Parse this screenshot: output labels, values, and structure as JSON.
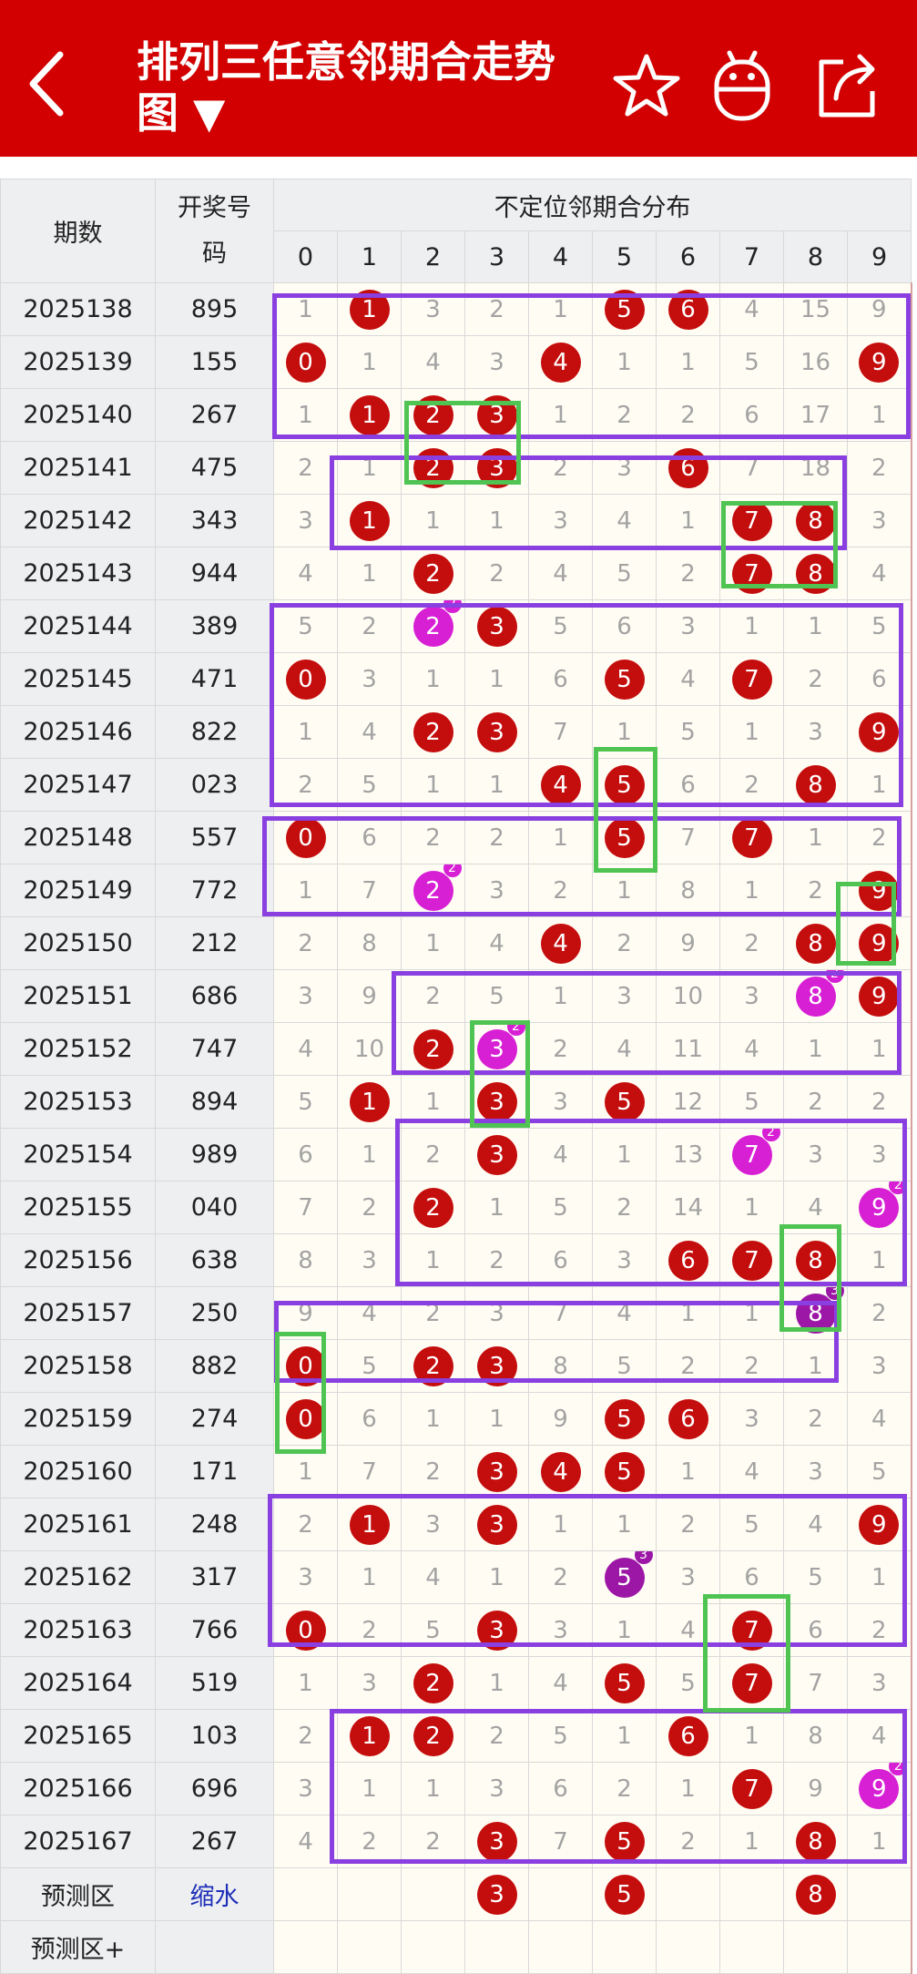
{
  "header": {
    "title": "排列三任意邻期合走势图 ▼",
    "bg": "#d20000",
    "icons": [
      "back-chevron-icon",
      "star-icon",
      "android-icon",
      "share-icon"
    ]
  },
  "table": {
    "col_period": "期数",
    "col_number": "开奖号码",
    "group_title": "不定位邻期合分布",
    "digits": [
      "0",
      "1",
      "2",
      "3",
      "4",
      "5",
      "6",
      "7",
      "8",
      "9"
    ],
    "rows": [
      {
        "period": "2025138",
        "number": "895",
        "cells": [
          [
            "1"
          ],
          [
            "1",
            "r"
          ],
          [
            "3"
          ],
          [
            "2"
          ],
          [
            "1"
          ],
          [
            "5",
            "r"
          ],
          [
            "6",
            "r"
          ],
          [
            "4"
          ],
          [
            "15"
          ],
          [
            "9"
          ]
        ]
      },
      {
        "period": "2025139",
        "number": "155",
        "cells": [
          [
            "0",
            "r"
          ],
          [
            "1"
          ],
          [
            "4"
          ],
          [
            "3"
          ],
          [
            "4",
            "r"
          ],
          [
            "1"
          ],
          [
            "1"
          ],
          [
            "5"
          ],
          [
            "16"
          ],
          [
            "9",
            "r"
          ]
        ]
      },
      {
        "period": "2025140",
        "number": "267",
        "cells": [
          [
            "1"
          ],
          [
            "1",
            "r"
          ],
          [
            "2",
            "r"
          ],
          [
            "3",
            "r"
          ],
          [
            "1"
          ],
          [
            "2"
          ],
          [
            "2"
          ],
          [
            "6"
          ],
          [
            "17"
          ],
          [
            "1"
          ]
        ]
      },
      {
        "period": "2025141",
        "number": "475",
        "cells": [
          [
            "2"
          ],
          [
            "1"
          ],
          [
            "2",
            "r"
          ],
          [
            "3",
            "r"
          ],
          [
            "2"
          ],
          [
            "3"
          ],
          [
            "6",
            "r"
          ],
          [
            "7"
          ],
          [
            "18"
          ],
          [
            "2"
          ]
        ]
      },
      {
        "period": "2025142",
        "number": "343",
        "cells": [
          [
            "3"
          ],
          [
            "1",
            "r"
          ],
          [
            "1"
          ],
          [
            "1"
          ],
          [
            "3"
          ],
          [
            "4"
          ],
          [
            "1"
          ],
          [
            "7",
            "r"
          ],
          [
            "8",
            "r"
          ],
          [
            "3"
          ]
        ]
      },
      {
        "period": "2025143",
        "number": "944",
        "cells": [
          [
            "4"
          ],
          [
            "1"
          ],
          [
            "2",
            "r"
          ],
          [
            "2"
          ],
          [
            "4"
          ],
          [
            "5"
          ],
          [
            "2"
          ],
          [
            "7",
            "r"
          ],
          [
            "8",
            "r"
          ],
          [
            "4"
          ]
        ]
      },
      {
        "period": "2025144",
        "number": "389",
        "cells": [
          [
            "5"
          ],
          [
            "2"
          ],
          [
            "2",
            "m",
            "2"
          ],
          [
            "3",
            "r"
          ],
          [
            "5"
          ],
          [
            "6"
          ],
          [
            "3"
          ],
          [
            "1"
          ],
          [
            "1"
          ],
          [
            "5"
          ]
        ]
      },
      {
        "period": "2025145",
        "number": "471",
        "cells": [
          [
            "0",
            "r"
          ],
          [
            "3"
          ],
          [
            "1"
          ],
          [
            "1"
          ],
          [
            "6"
          ],
          [
            "5",
            "r"
          ],
          [
            "4"
          ],
          [
            "7",
            "r"
          ],
          [
            "2"
          ],
          [
            "6"
          ]
        ]
      },
      {
        "period": "2025146",
        "number": "822",
        "cells": [
          [
            "1"
          ],
          [
            "4"
          ],
          [
            "2",
            "r"
          ],
          [
            "3",
            "r"
          ],
          [
            "7"
          ],
          [
            "1"
          ],
          [
            "5"
          ],
          [
            "1"
          ],
          [
            "3"
          ],
          [
            "9",
            "r"
          ]
        ]
      },
      {
        "period": "2025147",
        "number": "023",
        "cells": [
          [
            "2"
          ],
          [
            "5"
          ],
          [
            "1"
          ],
          [
            "1"
          ],
          [
            "4",
            "r"
          ],
          [
            "5",
            "r"
          ],
          [
            "6"
          ],
          [
            "2"
          ],
          [
            "8",
            "r"
          ],
          [
            "1"
          ]
        ]
      },
      {
        "period": "2025148",
        "number": "557",
        "cells": [
          [
            "0",
            "r"
          ],
          [
            "6"
          ],
          [
            "2"
          ],
          [
            "2"
          ],
          [
            "1"
          ],
          [
            "5",
            "r"
          ],
          [
            "7"
          ],
          [
            "7",
            "r"
          ],
          [
            "1"
          ],
          [
            "2"
          ]
        ]
      },
      {
        "period": "2025149",
        "number": "772",
        "cells": [
          [
            "1"
          ],
          [
            "7"
          ],
          [
            "2",
            "m",
            "2"
          ],
          [
            "3"
          ],
          [
            "2"
          ],
          [
            "1"
          ],
          [
            "8"
          ],
          [
            "1"
          ],
          [
            "2"
          ],
          [
            "9",
            "r"
          ]
        ]
      },
      {
        "period": "2025150",
        "number": "212",
        "cells": [
          [
            "2"
          ],
          [
            "8"
          ],
          [
            "1"
          ],
          [
            "4"
          ],
          [
            "4",
            "r"
          ],
          [
            "2"
          ],
          [
            "9"
          ],
          [
            "2"
          ],
          [
            "8",
            "r"
          ],
          [
            "9",
            "r"
          ]
        ]
      },
      {
        "period": "2025151",
        "number": "686",
        "cells": [
          [
            "3"
          ],
          [
            "9"
          ],
          [
            "2"
          ],
          [
            "5"
          ],
          [
            "1"
          ],
          [
            "3"
          ],
          [
            "10"
          ],
          [
            "3"
          ],
          [
            "8",
            "m",
            "2"
          ],
          [
            "9",
            "r"
          ]
        ]
      },
      {
        "period": "2025152",
        "number": "747",
        "cells": [
          [
            "4"
          ],
          [
            "10"
          ],
          [
            "2",
            "r"
          ],
          [
            "3",
            "m",
            "2"
          ],
          [
            "2"
          ],
          [
            "4"
          ],
          [
            "11"
          ],
          [
            "4"
          ],
          [
            "1"
          ],
          [
            "1"
          ]
        ]
      },
      {
        "period": "2025153",
        "number": "894",
        "cells": [
          [
            "5"
          ],
          [
            "1",
            "r"
          ],
          [
            "1"
          ],
          [
            "3",
            "r"
          ],
          [
            "3"
          ],
          [
            "5",
            "r"
          ],
          [
            "12"
          ],
          [
            "5"
          ],
          [
            "2"
          ],
          [
            "2"
          ]
        ]
      },
      {
        "period": "2025154",
        "number": "989",
        "cells": [
          [
            "6"
          ],
          [
            "1"
          ],
          [
            "2"
          ],
          [
            "3",
            "r"
          ],
          [
            "4"
          ],
          [
            "1"
          ],
          [
            "13"
          ],
          [
            "7",
            "m",
            "2"
          ],
          [
            "3"
          ],
          [
            "3"
          ]
        ]
      },
      {
        "period": "2025155",
        "number": "040",
        "cells": [
          [
            "7"
          ],
          [
            "2"
          ],
          [
            "2",
            "r"
          ],
          [
            "1"
          ],
          [
            "5"
          ],
          [
            "2"
          ],
          [
            "14"
          ],
          [
            "1"
          ],
          [
            "4"
          ],
          [
            "9",
            "m",
            "2"
          ]
        ]
      },
      {
        "period": "2025156",
        "number": "638",
        "cells": [
          [
            "8"
          ],
          [
            "3"
          ],
          [
            "1"
          ],
          [
            "2"
          ],
          [
            "6"
          ],
          [
            "3"
          ],
          [
            "6",
            "r"
          ],
          [
            "7",
            "r"
          ],
          [
            "8",
            "r"
          ],
          [
            "1"
          ]
        ]
      },
      {
        "period": "2025157",
        "number": "250",
        "cells": [
          [
            "9"
          ],
          [
            "4"
          ],
          [
            "2"
          ],
          [
            "3"
          ],
          [
            "7"
          ],
          [
            "4"
          ],
          [
            "1"
          ],
          [
            "1"
          ],
          [
            "8",
            "p",
            "3"
          ],
          [
            "2"
          ]
        ]
      },
      {
        "period": "2025158",
        "number": "882",
        "cells": [
          [
            "0",
            "r"
          ],
          [
            "5"
          ],
          [
            "2",
            "r"
          ],
          [
            "3",
            "r"
          ],
          [
            "8"
          ],
          [
            "5"
          ],
          [
            "2"
          ],
          [
            "2"
          ],
          [
            "1"
          ],
          [
            "3"
          ]
        ]
      },
      {
        "period": "2025159",
        "number": "274",
        "cells": [
          [
            "0",
            "r"
          ],
          [
            "6"
          ],
          [
            "1"
          ],
          [
            "1"
          ],
          [
            "9"
          ],
          [
            "5",
            "r"
          ],
          [
            "6",
            "r"
          ],
          [
            "3"
          ],
          [
            "2"
          ],
          [
            "4"
          ]
        ]
      },
      {
        "period": "2025160",
        "number": "171",
        "cells": [
          [
            "1"
          ],
          [
            "7"
          ],
          [
            "2"
          ],
          [
            "3",
            "r"
          ],
          [
            "4",
            "r"
          ],
          [
            "5",
            "r"
          ],
          [
            "1"
          ],
          [
            "4"
          ],
          [
            "3"
          ],
          [
            "5"
          ]
        ]
      },
      {
        "period": "2025161",
        "number": "248",
        "cells": [
          [
            "2"
          ],
          [
            "1",
            "r"
          ],
          [
            "3"
          ],
          [
            "3",
            "r"
          ],
          [
            "1"
          ],
          [
            "1"
          ],
          [
            "2"
          ],
          [
            "5"
          ],
          [
            "4"
          ],
          [
            "9",
            "r"
          ]
        ]
      },
      {
        "period": "2025162",
        "number": "317",
        "cells": [
          [
            "3"
          ],
          [
            "1"
          ],
          [
            "4"
          ],
          [
            "1"
          ],
          [
            "2"
          ],
          [
            "5",
            "p",
            "3"
          ],
          [
            "3"
          ],
          [
            "6"
          ],
          [
            "5"
          ],
          [
            "1"
          ]
        ]
      },
      {
        "period": "2025163",
        "number": "766",
        "cells": [
          [
            "0",
            "r"
          ],
          [
            "2"
          ],
          [
            "5"
          ],
          [
            "3",
            "r"
          ],
          [
            "3"
          ],
          [
            "1"
          ],
          [
            "4"
          ],
          [
            "7",
            "r"
          ],
          [
            "6"
          ],
          [
            "2"
          ]
        ]
      },
      {
        "period": "2025164",
        "number": "519",
        "cells": [
          [
            "1"
          ],
          [
            "3"
          ],
          [
            "2",
            "r"
          ],
          [
            "1"
          ],
          [
            "4"
          ],
          [
            "5",
            "r"
          ],
          [
            "5"
          ],
          [
            "7",
            "r"
          ],
          [
            "7"
          ],
          [
            "3"
          ]
        ]
      },
      {
        "period": "2025165",
        "number": "103",
        "cells": [
          [
            "2"
          ],
          [
            "1",
            "r"
          ],
          [
            "2",
            "r"
          ],
          [
            "2"
          ],
          [
            "5"
          ],
          [
            "1"
          ],
          [
            "6",
            "r"
          ],
          [
            "1"
          ],
          [
            "8"
          ],
          [
            "4"
          ]
        ]
      },
      {
        "period": "2025166",
        "number": "696",
        "cells": [
          [
            "3"
          ],
          [
            "1"
          ],
          [
            "1"
          ],
          [
            "3"
          ],
          [
            "6"
          ],
          [
            "2"
          ],
          [
            "1"
          ],
          [
            "7",
            "r"
          ],
          [
            "9"
          ],
          [
            "9",
            "m",
            "2"
          ]
        ]
      },
      {
        "period": "2025167",
        "number": "267",
        "cells": [
          [
            "4"
          ],
          [
            "2"
          ],
          [
            "2"
          ],
          [
            "3",
            "r"
          ],
          [
            "7"
          ],
          [
            "5",
            "r"
          ],
          [
            "2"
          ],
          [
            "1"
          ],
          [
            "8",
            "r"
          ],
          [
            "1"
          ]
        ]
      }
    ],
    "predict": {
      "label": "预测区",
      "shrink": "缩水",
      "balls": [
        "",
        "",
        "",
        "3",
        "",
        "5",
        "",
        "",
        "8",
        ""
      ]
    },
    "predict_plus": {
      "label": "预测区+"
    }
  },
  "colors": {
    "red_ball": "#c40d0d",
    "magenta_ball": "#d71fd4",
    "purple_ball": "#9c17a6",
    "purple_box": "#8a3fe0",
    "green_box": "#4fc452"
  }
}
